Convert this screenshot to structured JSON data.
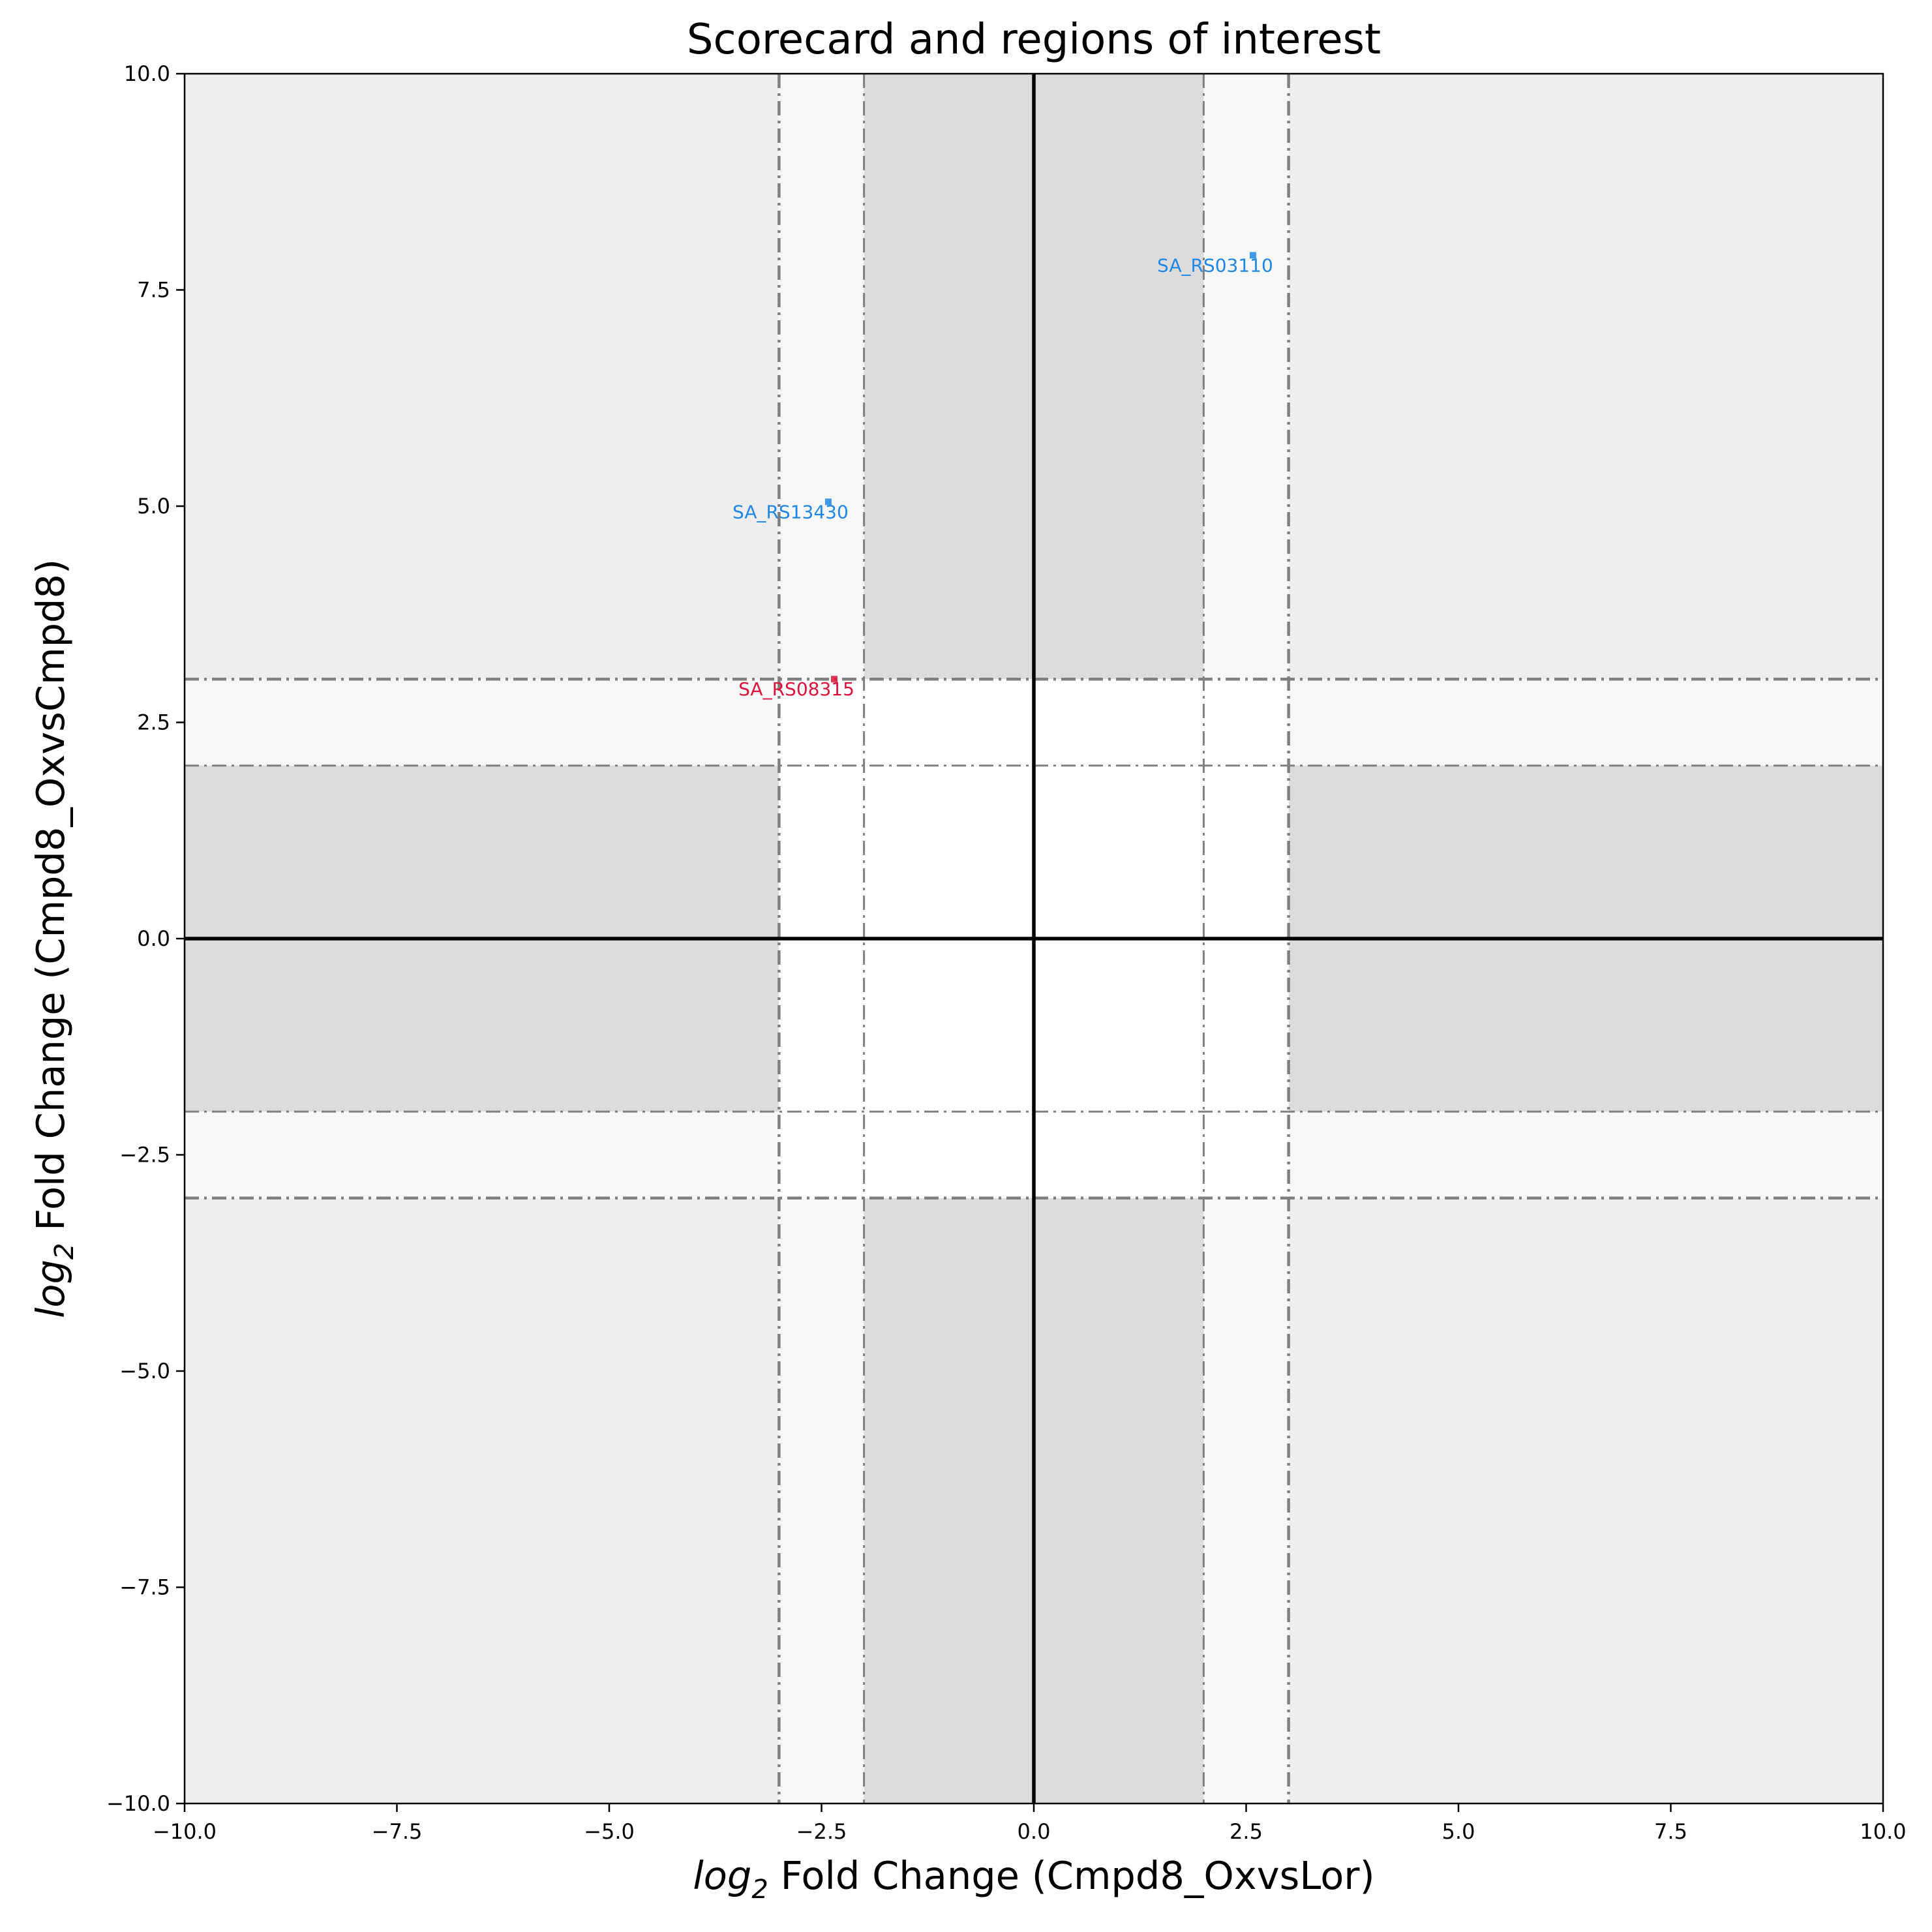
{
  "chart_data": {
    "type": "scatter",
    "title": "Scorecard and regions of interest",
    "xlabel": {
      "prefix": "log",
      "sub": "2",
      "suffix": " Fold Change (Cmpd8_OxvsLor)"
    },
    "ylabel": {
      "prefix": "log",
      "sub": "2",
      "suffix": " Fold Change (Cmpd8_OxvsCmpd8)"
    },
    "xlim": [
      -10,
      10
    ],
    "ylim": [
      -10,
      10
    ],
    "x_ticks": [
      -10,
      -7.5,
      -5,
      -2.5,
      0,
      2.5,
      5,
      7.5,
      10
    ],
    "x_tick_labels": [
      "−10.0",
      "−7.5",
      "−5.0",
      "−2.5",
      "0.0",
      "2.5",
      "5.0",
      "7.5",
      "10.0"
    ],
    "y_ticks": [
      -10,
      -7.5,
      -5,
      -2.5,
      0,
      2.5,
      5,
      7.5,
      10
    ],
    "y_tick_labels": [
      "−10.0",
      "−7.5",
      "−5.0",
      "−2.5",
      "0.0",
      "2.5",
      "5.0",
      "7.5",
      "10.0"
    ],
    "thresholds": {
      "inner": 2,
      "outer": 3
    },
    "region_colors": {
      "edge": "#eeeeee",
      "band": "#f7f7f7",
      "core": "#dcdcdc",
      "center": "#ffffff"
    },
    "line_color": "#808080",
    "points": [
      {
        "label": "SA_RS03110",
        "x": 2.58,
        "y": 7.9,
        "color": "#1f87e5"
      },
      {
        "label": "SA_RS13430",
        "x": -2.42,
        "y": 5.05,
        "color": "#1f87e5"
      },
      {
        "label": "SA_RS08315",
        "x": -2.35,
        "y": 3.0,
        "color": "#dc143c"
      }
    ],
    "grid": false,
    "legend": "none"
  }
}
